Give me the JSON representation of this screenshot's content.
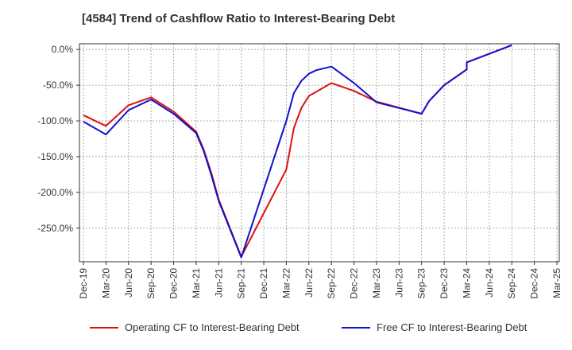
{
  "chart_data": {
    "type": "line",
    "title": "[4584]  Trend of Cashflow Ratio to Interest-Bearing Debt",
    "xlabel": "",
    "ylabel": "",
    "ylim": [
      -297,
      8
    ],
    "y_ticks": [
      0,
      -50,
      -100,
      -150,
      -200,
      -250
    ],
    "y_tick_labels": [
      "0.0%",
      "-50.0%",
      "-100.0%",
      "-150.0%",
      "-200.0%",
      "-250.0%"
    ],
    "x_tick_labels": [
      "Dec-19",
      "Mar-20",
      "Jun-20",
      "Sep-20",
      "Dec-20",
      "Mar-21",
      "Jun-21",
      "Sep-21",
      "Dec-21",
      "Mar-22",
      "Jun-22",
      "Sep-22",
      "Dec-22",
      "Mar-23",
      "Jun-23",
      "Sep-23",
      "Dec-23",
      "Mar-24",
      "Jun-24",
      "Sep-24",
      "Dec-24",
      "Mar-25"
    ],
    "grid": true,
    "legend_placement": "bottom",
    "series": [
      {
        "name": "Operating CF to Interest-Bearing Debt",
        "color": "#dd1111",
        "points": [
          [
            "Dec-19",
            -92
          ],
          [
            "Mar-20",
            -107
          ],
          [
            "Jun-20",
            -78
          ],
          [
            "Sep-20",
            -67
          ],
          [
            "Dec-20",
            -87
          ],
          [
            "Mar-21",
            -115
          ],
          [
            "Apr-21",
            -140
          ],
          [
            "May-21",
            -172
          ],
          [
            "Jun-21",
            -210
          ],
          [
            "Sep-21",
            -290
          ],
          [
            "Mar-22",
            -168
          ],
          [
            "Apr-22",
            -110
          ],
          [
            "May-22",
            -82
          ],
          [
            "Jun-22",
            -65
          ],
          [
            "Jul-22",
            -59
          ],
          [
            "Sep-22",
            -47
          ],
          [
            "Dec-22",
            -58
          ],
          [
            "Mar-23",
            -73
          ],
          [
            "Sep-23",
            -90
          ],
          [
            "Oct-23",
            -72
          ],
          [
            "Dec-23",
            -50
          ],
          [
            "Mar-24",
            -28
          ],
          [
            "Mar-24",
            -18
          ],
          [
            "Sep-24",
            6
          ]
        ]
      },
      {
        "name": "Free CF to Interest-Bearing Debt",
        "color": "#1111cc",
        "points": [
          [
            "Dec-19",
            -101
          ],
          [
            "Mar-20",
            -119
          ],
          [
            "Jun-20",
            -85
          ],
          [
            "Sep-20",
            -70
          ],
          [
            "Dec-20",
            -90
          ],
          [
            "Mar-21",
            -117
          ],
          [
            "Apr-21",
            -142
          ],
          [
            "May-21",
            -175
          ],
          [
            "Jun-21",
            -212
          ],
          [
            "Sep-21",
            -291
          ],
          [
            "Mar-22",
            -100
          ],
          [
            "Apr-22",
            -61
          ],
          [
            "May-22",
            -44
          ],
          [
            "Jun-22",
            -34
          ],
          [
            "Jul-22",
            -29
          ],
          [
            "Sep-22",
            -24
          ],
          [
            "Dec-22",
            -47
          ],
          [
            "Mar-23",
            -74
          ],
          [
            "Sep-23",
            -90
          ],
          [
            "Oct-23",
            -72
          ],
          [
            "Dec-23",
            -50
          ],
          [
            "Mar-24",
            -28
          ],
          [
            "Mar-24",
            -18
          ],
          [
            "Sep-24",
            6
          ]
        ]
      }
    ]
  }
}
